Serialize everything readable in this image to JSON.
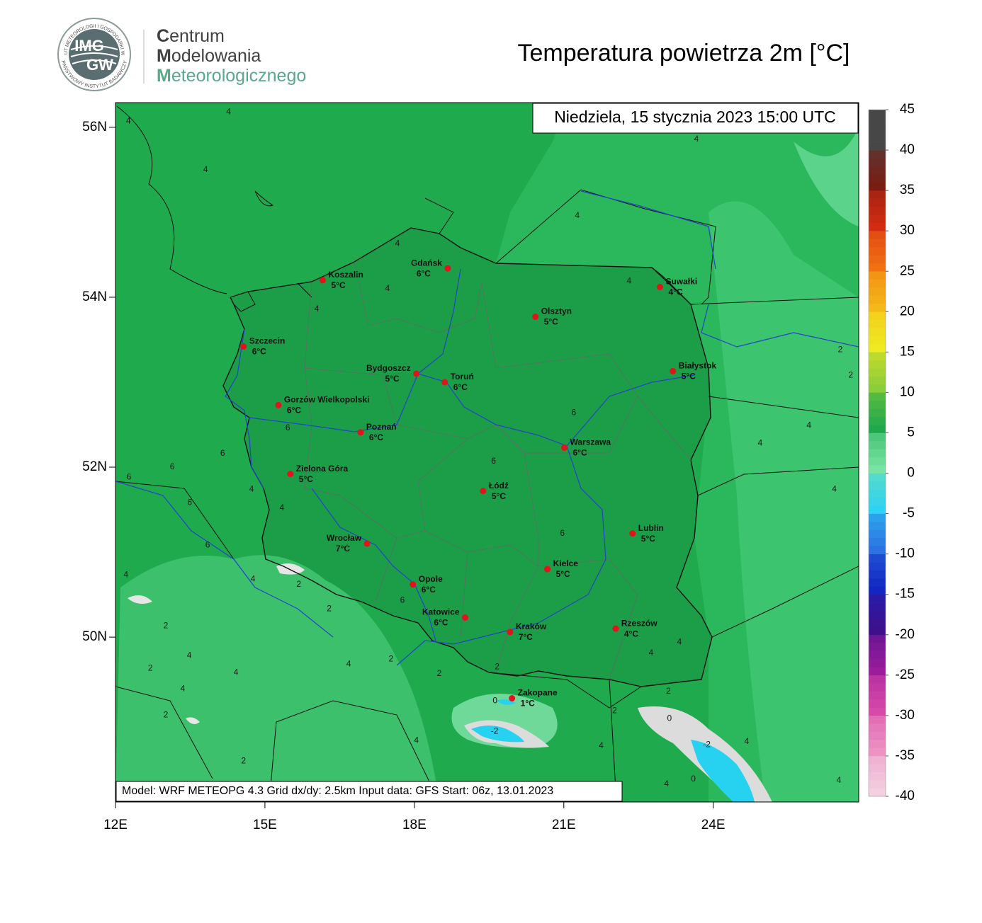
{
  "logo": {
    "ring_top": "INSTYTUT METEOROLOGII I GOSPODARKI WODNEJ",
    "ring_bottom": "PAŃSTWOWY INSTYTUT BADAWCZY",
    "mark_top": "IMG",
    "mark_bottom": "GW",
    "line1": "Centrum",
    "line2": "Modelowania",
    "line3": "Meteorologicznego"
  },
  "chart_data": {
    "type": "map",
    "title": "Temperatura powietrza 2m [°C]",
    "date": "Niedziela, 15 stycznia 2023 15:00 UTC",
    "footer": "Model: WRF METEOPG 4.3  Grid dx/dy: 2.5km  Input data: GFS  Start: 06z, 13.01.2023",
    "xlim": [
      12,
      26.92
    ],
    "ylim": [
      48.06,
      56.29
    ],
    "xticks": [
      {
        "value": 12,
        "label": "12E"
      },
      {
        "value": 15,
        "label": "15E"
      },
      {
        "value": 18,
        "label": "18E"
      },
      {
        "value": 21,
        "label": "21E"
      },
      {
        "value": 24,
        "label": "24E"
      }
    ],
    "yticks": [
      {
        "value": 50,
        "label": "50N"
      },
      {
        "value": 52,
        "label": "52N"
      },
      {
        "value": 54,
        "label": "54N"
      },
      {
        "value": 56,
        "label": "56N"
      }
    ],
    "cities": [
      {
        "name": "Koszalin",
        "temp": 5,
        "temp_label": "5°C",
        "lon": 16.16,
        "lat": 54.2
      },
      {
        "name": "Gdańsk",
        "temp": 6,
        "temp_label": "6°C",
        "lon": 18.67,
        "lat": 54.34
      },
      {
        "name": "Suwałki",
        "temp": 4,
        "temp_label": "4°C",
        "lon": 22.93,
        "lat": 54.12
      },
      {
        "name": "Olsztyn",
        "temp": 5,
        "temp_label": "5°C",
        "lon": 20.43,
        "lat": 53.77
      },
      {
        "name": "Szczecin",
        "temp": 6,
        "temp_label": "6°C",
        "lon": 14.57,
        "lat": 53.42
      },
      {
        "name": "Białystok",
        "temp": 5,
        "temp_label": "5°C",
        "lon": 23.19,
        "lat": 53.13
      },
      {
        "name": "Bydgoszcz",
        "temp": 5,
        "temp_label": "5°C",
        "lon": 18.04,
        "lat": 53.1
      },
      {
        "name": "Toruń",
        "temp": 6,
        "temp_label": "6°C",
        "lon": 18.61,
        "lat": 53.0
      },
      {
        "name": "Gorzów Wielkopolski",
        "temp": 6,
        "temp_label": "6°C",
        "lon": 15.27,
        "lat": 52.73
      },
      {
        "name": "Poznań",
        "temp": 6,
        "temp_label": "6°C",
        "lon": 16.92,
        "lat": 52.41
      },
      {
        "name": "Warszawa",
        "temp": 6,
        "temp_label": "6°C",
        "lon": 21.01,
        "lat": 52.23
      },
      {
        "name": "Zielona Góra",
        "temp": 5,
        "temp_label": "5°C",
        "lon": 15.51,
        "lat": 51.92
      },
      {
        "name": "Łódź",
        "temp": 5,
        "temp_label": "5°C",
        "lon": 19.38,
        "lat": 51.72
      },
      {
        "name": "Lublin",
        "temp": 5,
        "temp_label": "5°C",
        "lon": 22.38,
        "lat": 51.22
      },
      {
        "name": "Wrocław",
        "temp": 7,
        "temp_label": "7°C",
        "lon": 17.05,
        "lat": 51.1
      },
      {
        "name": "Kielce",
        "temp": 5,
        "temp_label": "5°C",
        "lon": 20.67,
        "lat": 50.8
      },
      {
        "name": "Opole",
        "temp": 6,
        "temp_label": "6°C",
        "lon": 17.97,
        "lat": 50.62
      },
      {
        "name": "Katowice",
        "temp": 6,
        "temp_label": "6°C",
        "lon": 19.02,
        "lat": 50.23
      },
      {
        "name": "Rzeszów",
        "temp": 4,
        "temp_label": "4°C",
        "lon": 22.04,
        "lat": 50.1
      },
      {
        "name": "Kraków",
        "temp": 7,
        "temp_label": "7°C",
        "lon": 19.92,
        "lat": 50.06
      },
      {
        "name": "Zakopane",
        "temp": 1,
        "temp_label": "1°C",
        "lon": 19.96,
        "lat": 49.28
      }
    ],
    "contour_labels": [
      {
        "value": 4,
        "lon": 14.27,
        "lat": 56.18
      },
      {
        "value": 4,
        "lon": 12.26,
        "lat": 56.07
      },
      {
        "value": 4,
        "lon": 13.81,
        "lat": 55.5
      },
      {
        "value": 4,
        "lon": 23.66,
        "lat": 55.86
      },
      {
        "value": 4,
        "lon": 17.66,
        "lat": 54.63
      },
      {
        "value": 4,
        "lon": 21.27,
        "lat": 54.96
      },
      {
        "value": 4,
        "lon": 16.04,
        "lat": 53.86
      },
      {
        "value": 4,
        "lon": 17.46,
        "lat": 54.1
      },
      {
        "value": 4,
        "lon": 22.31,
        "lat": 54.19
      },
      {
        "value": 2,
        "lon": 26.55,
        "lat": 53.38
      },
      {
        "value": 2,
        "lon": 26.76,
        "lat": 53.08
      },
      {
        "value": 6,
        "lon": 21.2,
        "lat": 52.64
      },
      {
        "value": 4,
        "lon": 25.92,
        "lat": 52.49
      },
      {
        "value": 4,
        "lon": 24.94,
        "lat": 52.28
      },
      {
        "value": 6,
        "lon": 14.15,
        "lat": 52.16
      },
      {
        "value": 6,
        "lon": 13.14,
        "lat": 52.0
      },
      {
        "value": 6,
        "lon": 15.46,
        "lat": 52.46
      },
      {
        "value": 6,
        "lon": 12.27,
        "lat": 51.88
      },
      {
        "value": 6,
        "lon": 13.49,
        "lat": 51.58
      },
      {
        "value": 6,
        "lon": 19.59,
        "lat": 52.07
      },
      {
        "value": 4,
        "lon": 14.73,
        "lat": 51.74
      },
      {
        "value": 4,
        "lon": 15.34,
        "lat": 51.52
      },
      {
        "value": 6,
        "lon": 13.85,
        "lat": 51.08
      },
      {
        "value": 6,
        "lon": 20.97,
        "lat": 51.22
      },
      {
        "value": 4,
        "lon": 12.21,
        "lat": 50.73
      },
      {
        "value": 4,
        "lon": 14.76,
        "lat": 50.68
      },
      {
        "value": 2,
        "lon": 15.68,
        "lat": 50.62
      },
      {
        "value": 2,
        "lon": 16.29,
        "lat": 50.33
      },
      {
        "value": 6,
        "lon": 17.76,
        "lat": 50.43
      },
      {
        "value": 2,
        "lon": 13.01,
        "lat": 50.13
      },
      {
        "value": 4,
        "lon": 26.43,
        "lat": 51.74
      },
      {
        "value": 4,
        "lon": 22.75,
        "lat": 49.81
      },
      {
        "value": 4,
        "lon": 23.32,
        "lat": 49.94
      },
      {
        "value": 4,
        "lon": 13.48,
        "lat": 49.78
      },
      {
        "value": 2,
        "lon": 12.7,
        "lat": 49.63
      },
      {
        "value": 2,
        "lon": 17.53,
        "lat": 49.74
      },
      {
        "value": 4,
        "lon": 16.68,
        "lat": 49.68
      },
      {
        "value": 2,
        "lon": 18.5,
        "lat": 49.57
      },
      {
        "value": 2,
        "lon": 19.66,
        "lat": 49.65
      },
      {
        "value": 4,
        "lon": 13.35,
        "lat": 49.39
      },
      {
        "value": 4,
        "lon": 14.42,
        "lat": 49.58
      },
      {
        "value": 2,
        "lon": 13.01,
        "lat": 49.08
      },
      {
        "value": 2,
        "lon": 23.1,
        "lat": 49.36
      },
      {
        "value": 2,
        "lon": 22.02,
        "lat": 49.13
      },
      {
        "value": 0,
        "lon": 23.12,
        "lat": 49.04
      },
      {
        "value": -2,
        "lon": 23.87,
        "lat": 48.73
      },
      {
        "value": -2,
        "lon": 19.61,
        "lat": 48.89
      },
      {
        "value": 0,
        "lon": 19.62,
        "lat": 49.25
      },
      {
        "value": 4,
        "lon": 18.04,
        "lat": 48.78
      },
      {
        "value": 4,
        "lon": 24.67,
        "lat": 48.77
      },
      {
        "value": 2,
        "lon": 14.57,
        "lat": 48.54
      },
      {
        "value": 4,
        "lon": 21.75,
        "lat": 48.72
      },
      {
        "value": 4,
        "lon": 23.06,
        "lat": 48.27
      },
      {
        "value": 0,
        "lon": 23.6,
        "lat": 48.33
      },
      {
        "value": 4,
        "lon": 26.52,
        "lat": 48.31
      }
    ],
    "colorbar": {
      "lim": [
        -40,
        45
      ],
      "ticks": [
        -40,
        -35,
        -30,
        -25,
        -20,
        -15,
        -10,
        -5,
        0,
        5,
        10,
        15,
        20,
        25,
        30,
        35,
        40,
        45
      ],
      "colors": [
        "#f3cfe0",
        "#ec93c4",
        "#d84aa9",
        "#9b1c9c",
        "#3e108c",
        "#1226c2",
        "#2c72e2",
        "#2ed2f4",
        "#78e4a4",
        "#1fa84c",
        "#8ccd3a",
        "#f0ea22",
        "#f4b818",
        "#f07012",
        "#d42c12",
        "#7a1c12",
        "#474747"
      ]
    }
  }
}
